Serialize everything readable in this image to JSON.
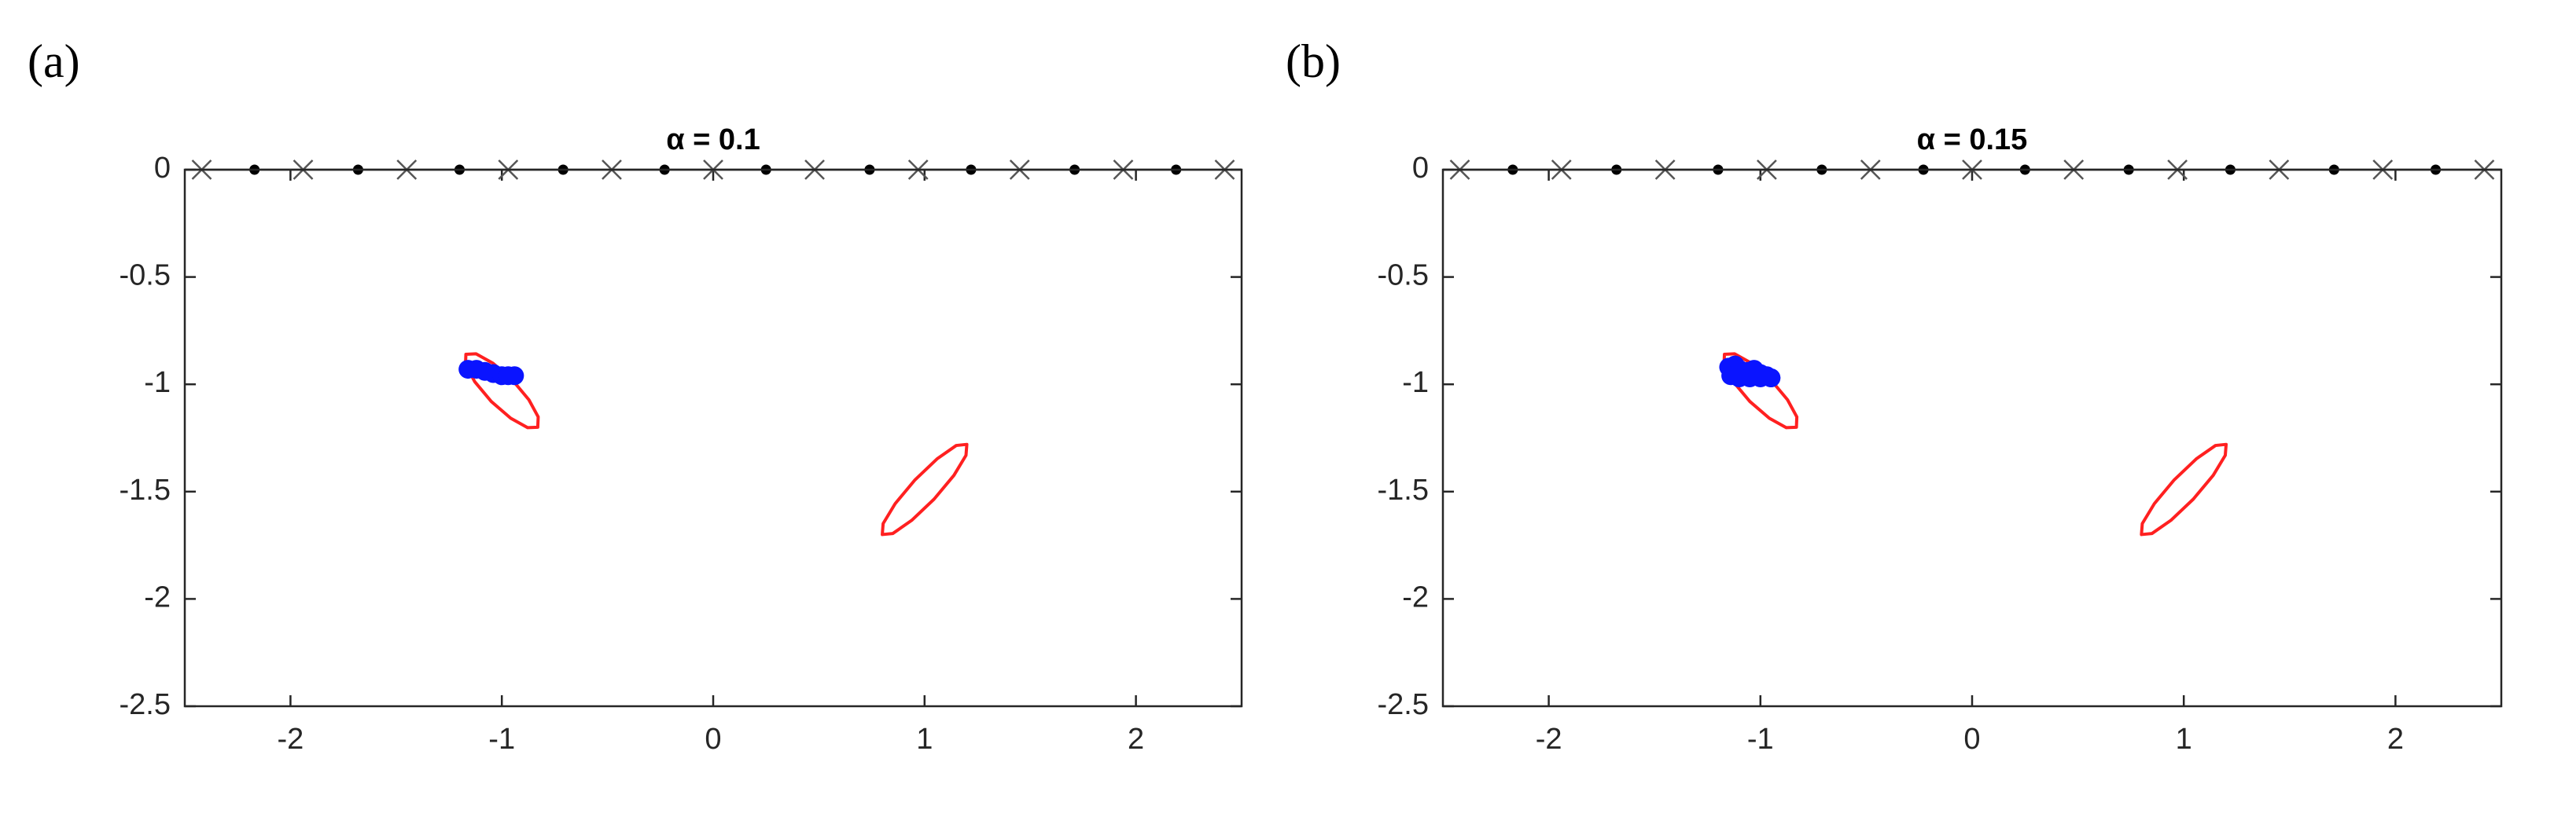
{
  "chart_data": [
    {
      "type": "scatter",
      "label": "(a)",
      "title": "α = 0.1",
      "xlim": [
        -2.5,
        2.5
      ],
      "ylim": [
        -2.5,
        0
      ],
      "xticks": [
        -2,
        -1,
        0,
        1,
        2
      ],
      "yticks": [
        0,
        -0.5,
        -1,
        -1.5,
        -2,
        -2.5
      ],
      "series": [
        {
          "marker": "x",
          "color": "#555555",
          "x": [
            -2.42,
            -1.94,
            -1.45,
            -0.97,
            -0.48,
            0,
            0.48,
            0.97,
            1.45,
            1.94,
            2.42
          ],
          "y": [
            0,
            0,
            0,
            0,
            0,
            0,
            0,
            0,
            0,
            0,
            0
          ]
        },
        {
          "marker": "dot",
          "color": "#000000",
          "x": [
            -2.17,
            -1.68,
            -1.2,
            -0.71,
            -0.23,
            0.25,
            0.74,
            1.22,
            1.71,
            2.19
          ],
          "y": [
            0,
            0,
            0,
            0,
            0,
            0,
            0,
            0,
            0,
            0
          ]
        },
        {
          "marker": "line",
          "color": "#ff2020",
          "x": [
            -0.83,
            -0.828,
            -0.872,
            -0.95,
            -1.042,
            -1.122,
            -1.17,
            -1.172,
            -1.128,
            -1.05,
            -0.958,
            -0.878,
            -0.83
          ],
          "y": [
            -1.2,
            -1.152,
            -1.072,
            -0.98,
            -0.902,
            -0.858,
            -0.86,
            -0.908,
            -0.988,
            -1.08,
            -1.158,
            -1.202,
            -1.2
          ]
        },
        {
          "marker": "line",
          "color": "#ff2020",
          "x": [
            1.2,
            1.196,
            1.139,
            1.045,
            0.939,
            0.85,
            0.8,
            0.804,
            0.861,
            0.955,
            1.061,
            1.15,
            1.2
          ],
          "y": [
            -1.28,
            -1.331,
            -1.424,
            -1.535,
            -1.634,
            -1.695,
            -1.7,
            -1.649,
            -1.556,
            -1.445,
            -1.346,
            -1.285,
            -1.28
          ]
        },
        {
          "marker": "blob",
          "color": "#0a14ff",
          "x": [
            -1.16,
            -1.12,
            -1.08,
            -1.04,
            -1.0,
            -0.97,
            -0.94
          ],
          "y": [
            -0.93,
            -0.93,
            -0.94,
            -0.95,
            -0.96,
            -0.96,
            -0.96
          ]
        }
      ]
    },
    {
      "type": "scatter",
      "label": "(b)",
      "title": "α = 0.15",
      "xlim": [
        -2.5,
        2.5
      ],
      "ylim": [
        -2.5,
        0
      ],
      "xticks": [
        -2,
        -1,
        0,
        1,
        2
      ],
      "yticks": [
        0,
        -0.5,
        -1,
        -1.5,
        -2,
        -2.5
      ],
      "series": [
        {
          "marker": "x",
          "color": "#555555",
          "x": [
            -2.42,
            -1.94,
            -1.45,
            -0.97,
            -0.48,
            0,
            0.48,
            0.97,
            1.45,
            1.94,
            2.42
          ],
          "y": [
            0,
            0,
            0,
            0,
            0,
            0,
            0,
            0,
            0,
            0,
            0
          ]
        },
        {
          "marker": "dot",
          "color": "#000000",
          "x": [
            -2.17,
            -1.68,
            -1.2,
            -0.71,
            -0.23,
            0.25,
            0.74,
            1.22,
            1.71,
            2.19
          ],
          "y": [
            0,
            0,
            0,
            0,
            0,
            0,
            0,
            0,
            0,
            0
          ]
        },
        {
          "marker": "line",
          "color": "#ff2020",
          "x": [
            -0.83,
            -0.828,
            -0.872,
            -0.95,
            -1.042,
            -1.122,
            -1.17,
            -1.172,
            -1.128,
            -1.05,
            -0.958,
            -0.878,
            -0.83
          ],
          "y": [
            -1.2,
            -1.152,
            -1.072,
            -0.98,
            -0.902,
            -0.858,
            -0.86,
            -0.908,
            -0.988,
            -1.08,
            -1.158,
            -1.202,
            -1.2
          ]
        },
        {
          "marker": "line",
          "color": "#ff2020",
          "x": [
            1.2,
            1.196,
            1.139,
            1.045,
            0.939,
            0.85,
            0.8,
            0.804,
            0.861,
            0.955,
            1.061,
            1.15,
            1.2
          ],
          "y": [
            -1.28,
            -1.331,
            -1.424,
            -1.535,
            -1.634,
            -1.695,
            -1.7,
            -1.649,
            -1.556,
            -1.445,
            -1.346,
            -1.285,
            -1.28
          ]
        },
        {
          "marker": "blob",
          "color": "#0a14ff",
          "x": [
            -1.15,
            -1.12,
            -1.1,
            -1.06,
            -1.03,
            -1.0,
            -0.97,
            -0.95,
            -1.14,
            -1.1,
            -1.05,
            -1.0,
            -0.95
          ],
          "y": [
            -0.92,
            -0.91,
            -0.93,
            -0.94,
            -0.93,
            -0.95,
            -0.96,
            -0.97,
            -0.96,
            -0.97,
            -0.97,
            -0.97,
            -0.97
          ]
        }
      ]
    }
  ]
}
